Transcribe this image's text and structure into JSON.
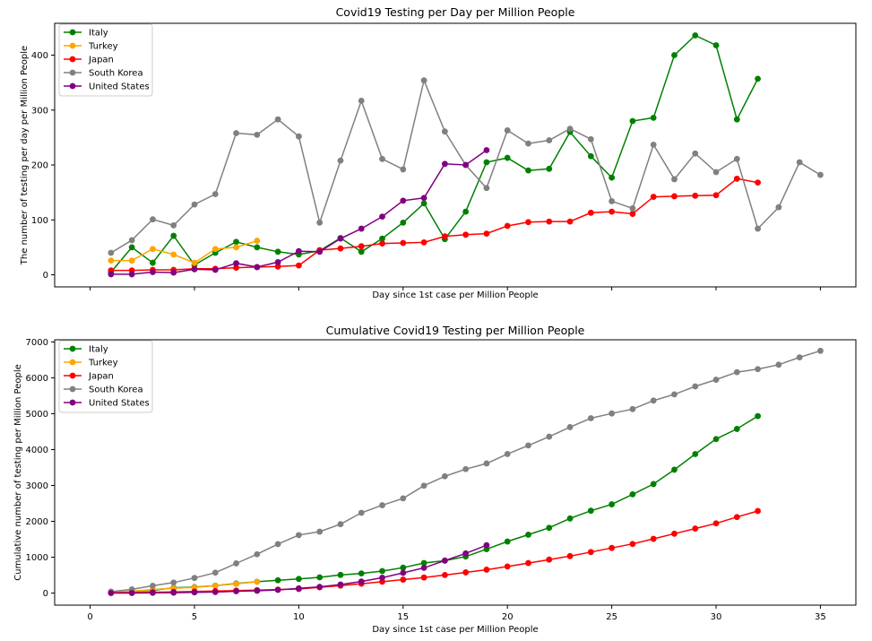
{
  "chart_data": [
    {
      "type": "line",
      "title": "Covid19 Testing per Day per Million People",
      "xlabel": "Day since 1st case per Million People",
      "ylabel": "The number of testing per day per Million People",
      "xlim": [
        -1.7,
        36.7
      ],
      "ylim": [
        -22,
        458
      ],
      "yticks": [
        0,
        100,
        200,
        300,
        400
      ],
      "xticks": [
        0,
        5,
        10,
        15,
        20,
        25,
        30,
        35
      ],
      "show_xtick_labels": false,
      "legend": "top-left",
      "series": [
        {
          "name": "Italy",
          "color": "#008000",
          "x": [
            1,
            2,
            3,
            4,
            5,
            6,
            7,
            8,
            9,
            10,
            11,
            12,
            13,
            14,
            15,
            16,
            17,
            18,
            19,
            20,
            21,
            22,
            23,
            24,
            25,
            26,
            27,
            28,
            29,
            30,
            31,
            32
          ],
          "values": [
            5,
            50,
            22,
            71,
            18,
            40,
            60,
            50,
            42,
            37,
            44,
            67,
            42,
            66,
            95,
            130,
            65,
            115,
            205,
            213,
            190,
            193,
            260,
            216,
            177,
            280,
            286,
            400,
            436,
            418,
            283,
            357
          ]
        },
        {
          "name": "Turkey",
          "color": "#FFA500",
          "x": [
            1,
            2,
            3,
            4,
            5,
            6,
            7,
            8
          ],
          "values": [
            26,
            26,
            47,
            37,
            22,
            47,
            50,
            62
          ]
        },
        {
          "name": "Japan",
          "color": "#FF0000",
          "x": [
            1,
            2,
            3,
            4,
            5,
            6,
            7,
            8,
            9,
            10,
            11,
            12,
            13,
            14,
            15,
            16,
            17,
            18,
            19,
            20,
            21,
            22,
            23,
            24,
            25,
            26,
            27,
            28,
            29,
            30,
            31,
            32
          ],
          "values": [
            8,
            8,
            9,
            9,
            11,
            11,
            13,
            14,
            15,
            17,
            45,
            48,
            52,
            57,
            58,
            59,
            70,
            73,
            75,
            89,
            96,
            97,
            97,
            113,
            115,
            111,
            142,
            143,
            144,
            145,
            175,
            168
          ]
        },
        {
          "name": "South Korea",
          "color": "#808080",
          "x": [
            1,
            2,
            3,
            4,
            5,
            6,
            7,
            8,
            9,
            10,
            11,
            12,
            13,
            14,
            15,
            16,
            17,
            18,
            19,
            20,
            21,
            22,
            23,
            24,
            25,
            26,
            27,
            28,
            29,
            30,
            31,
            32,
            33,
            34,
            35
          ],
          "values": [
            40,
            63,
            101,
            90,
            128,
            147,
            258,
            255,
            283,
            252,
            95,
            208,
            317,
            211,
            192,
            354,
            261,
            200,
            158,
            263,
            239,
            245,
            266,
            247,
            134,
            121,
            237,
            174,
            221,
            187,
            211,
            84,
            123,
            205,
            182
          ]
        },
        {
          "name": "United States",
          "color": "#800080",
          "x": [
            1,
            2,
            3,
            4,
            5,
            6,
            7,
            8,
            9,
            10,
            11,
            12,
            13,
            14,
            15,
            16,
            17,
            18,
            19
          ],
          "values": [
            1,
            1,
            5,
            4,
            10,
            9,
            21,
            14,
            23,
            43,
            42,
            66,
            84,
            106,
            135,
            140,
            202,
            200,
            227
          ]
        }
      ]
    },
    {
      "type": "line",
      "title": "Cumulative Covid19 Testing per Million People",
      "xlabel": "Day since 1st case per Million People",
      "ylabel": "Cumulative number of testing per Million People",
      "xlim": [
        -1.7,
        36.7
      ],
      "ylim": [
        -336,
        7060
      ],
      "yticks": [
        0,
        1000,
        2000,
        3000,
        4000,
        5000,
        6000,
        7000
      ],
      "xticks": [
        0,
        5,
        10,
        15,
        20,
        25,
        30,
        35
      ],
      "show_xtick_labels": true,
      "legend": "top-left",
      "series": [
        {
          "name": "Italy",
          "color": "#008000",
          "x": [
            1,
            2,
            3,
            4,
            5,
            6,
            7,
            8,
            9,
            10,
            11,
            12,
            13,
            14,
            15,
            16,
            17,
            18,
            19,
            20,
            21,
            22,
            23,
            24,
            25,
            26,
            27,
            28,
            29,
            30,
            31,
            32
          ],
          "values": [
            5,
            55,
            77,
            148,
            166,
            206,
            266,
            316,
            358,
            395,
            439,
            506,
            548,
            614,
            709,
            839,
            904,
            1019,
            1224,
            1437,
            1627,
            1820,
            2080,
            2296,
            2473,
            2753,
            3039,
            3439,
            3875,
            4293,
            4576,
            4933
          ]
        },
        {
          "name": "Turkey",
          "color": "#FFA500",
          "x": [
            1,
            2,
            3,
            4,
            5,
            6,
            7,
            8
          ],
          "values": [
            26,
            52,
            99,
            136,
            158,
            205,
            255,
            317
          ]
        },
        {
          "name": "Japan",
          "color": "#FF0000",
          "x": [
            1,
            2,
            3,
            4,
            5,
            6,
            7,
            8,
            9,
            10,
            11,
            12,
            13,
            14,
            15,
            16,
            17,
            18,
            19,
            20,
            21,
            22,
            23,
            24,
            25,
            26,
            27,
            28,
            29,
            30,
            31,
            32
          ],
          "values": [
            8,
            16,
            25,
            34,
            45,
            56,
            69,
            83,
            98,
            115,
            160,
            208,
            260,
            317,
            375,
            434,
            504,
            577,
            652,
            741,
            837,
            934,
            1031,
            1144,
            1259,
            1370,
            1512,
            1655,
            1799,
            1944,
            2119,
            2287
          ]
        },
        {
          "name": "South Korea",
          "color": "#808080",
          "x": [
            1,
            2,
            3,
            4,
            5,
            6,
            7,
            8,
            9,
            10,
            11,
            12,
            13,
            14,
            15,
            16,
            17,
            18,
            19,
            20,
            21,
            22,
            23,
            24,
            25,
            26,
            27,
            28,
            29,
            30,
            31,
            32,
            33,
            34,
            35
          ],
          "values": [
            40,
            103,
            204,
            294,
            422,
            569,
            827,
            1082,
            1365,
            1617,
            1712,
            1920,
            2237,
            2448,
            2640,
            2994,
            3255,
            3455,
            3613,
            3876,
            4115,
            4360,
            4626,
            4873,
            5007,
            5128,
            5365,
            5539,
            5760,
            5947,
            6158,
            6242,
            6365,
            6570,
            6752
          ]
        },
        {
          "name": "United States",
          "color": "#800080",
          "x": [
            1,
            2,
            3,
            4,
            5,
            6,
            7,
            8,
            9,
            10,
            11,
            12,
            13,
            14,
            15,
            16,
            17,
            18,
            19
          ],
          "values": [
            1,
            2,
            7,
            11,
            21,
            30,
            51,
            65,
            88,
            131,
            173,
            239,
            323,
            429,
            564,
            704,
            906,
            1106,
            1333
          ]
        }
      ]
    }
  ]
}
